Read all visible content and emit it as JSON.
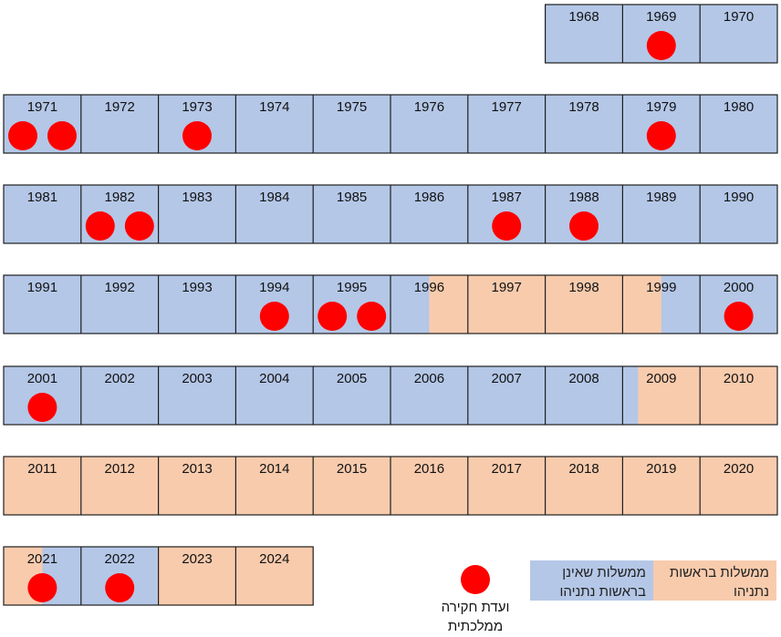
{
  "colors": {
    "blue": "#b4c7e7",
    "orange": "#f8cbad",
    "dot": "#ff0000",
    "border": "#1f1f1f"
  },
  "chart_data": {
    "type": "table",
    "title": "",
    "rows": [
      {
        "years": [
          1968,
          1969,
          1970
        ],
        "align": "right"
      },
      {
        "years": [
          1971,
          1972,
          1973,
          1974,
          1975,
          1976,
          1977,
          1978,
          1979,
          1980
        ],
        "align": "left"
      },
      {
        "years": [
          1981,
          1982,
          1983,
          1984,
          1985,
          1986,
          1987,
          1988,
          1989,
          1990
        ],
        "align": "left"
      },
      {
        "years": [
          1991,
          1992,
          1993,
          1994,
          1995,
          1996,
          1997,
          1998,
          1999,
          2000
        ],
        "align": "left"
      },
      {
        "years": [
          2001,
          2002,
          2003,
          2004,
          2005,
          2006,
          2007,
          2008,
          2009,
          2010
        ],
        "align": "left"
      },
      {
        "years": [
          2011,
          2012,
          2013,
          2014,
          2015,
          2016,
          2017,
          2018,
          2019,
          2020
        ],
        "align": "left"
      },
      {
        "years": [
          2021,
          2022,
          2023,
          2024
        ],
        "align": "left"
      }
    ],
    "netanyahu_government_periods": [
      {
        "start": 1996.5,
        "end": 1999.5
      },
      {
        "start": 2009.2,
        "end": 2021.5
      },
      {
        "start": 2022.99,
        "end": 2025.0
      }
    ],
    "commissions_per_year": {
      "1969": 1,
      "1971": 2,
      "1973": 1,
      "1979": 1,
      "1982": 2,
      "1987": 1,
      "1988": 1,
      "1994": 1,
      "1995": 2,
      "2000": 1,
      "2001": 1,
      "2021": 1,
      "2022": 1
    }
  },
  "legend": {
    "netanyahu": "ממשלות בראשות נתניהו",
    "non_netanyahu": "ממשלות שאינן בראשות נתניהו",
    "commission": "ועדת חקירה ממלכתית"
  }
}
